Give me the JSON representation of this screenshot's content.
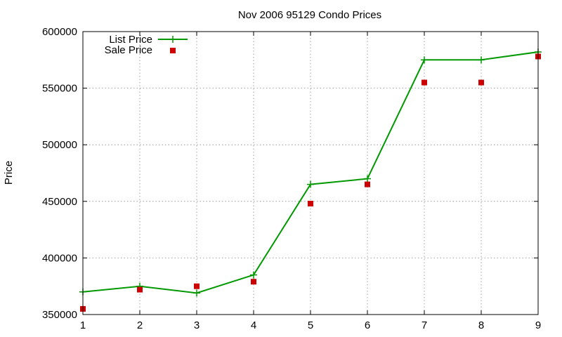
{
  "chart_data": {
    "type": "line",
    "title": "Nov 2006 95129 Condo Prices",
    "xlabel": "",
    "ylabel": "Price",
    "x": [
      1,
      2,
      3,
      4,
      5,
      6,
      7,
      8,
      9
    ],
    "xlim": [
      1,
      9
    ],
    "ylim": [
      350000,
      600000
    ],
    "xticks": [
      "1",
      "2",
      "3",
      "4",
      "5",
      "6",
      "7",
      "8",
      "9"
    ],
    "yticks": [
      "350000",
      "400000",
      "450000",
      "500000",
      "550000",
      "600000"
    ],
    "grid": true,
    "legend_position": "top-left",
    "series": [
      {
        "name": "List Price",
        "style": "line-with-plus-markers",
        "color": "#009900",
        "values": [
          370000,
          375000,
          369000,
          385000,
          465000,
          470000,
          575000,
          575000,
          582000
        ]
      },
      {
        "name": "Sale Price",
        "style": "square-markers",
        "color": "#cc0000",
        "values": [
          355000,
          372000,
          375000,
          379000,
          448000,
          465000,
          555000,
          555000,
          578000
        ]
      }
    ]
  }
}
